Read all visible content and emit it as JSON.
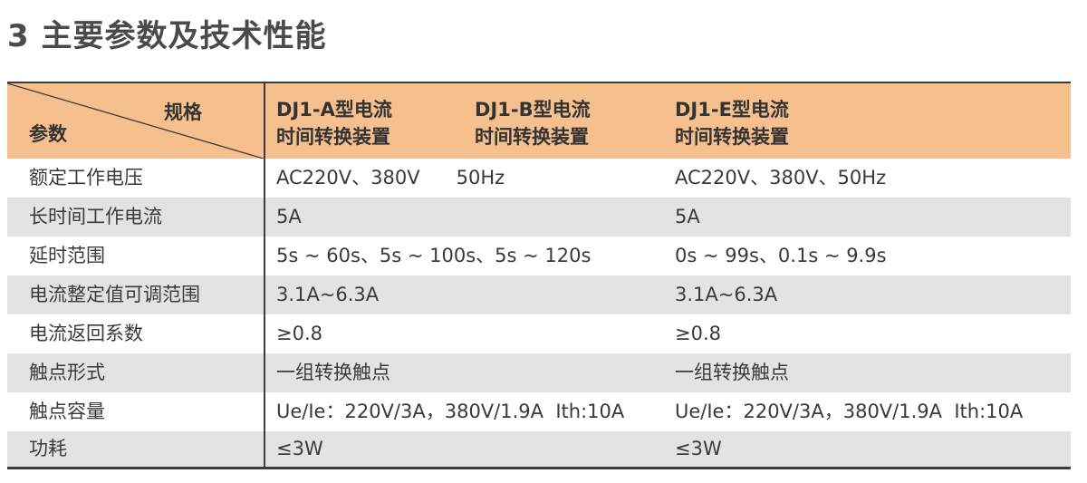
{
  "title": "3 主要参数及技术性能",
  "table": {
    "corner_top": "规格",
    "corner_bottom": "参数",
    "models": [
      {
        "line1": "DJ1-A型电流",
        "line2": "时间转换装置"
      },
      {
        "line1": "DJ1-B型电流",
        "line2": "时间转换装置"
      },
      {
        "line1": "DJ1-E型电流",
        "line2": "时间转换装置"
      }
    ],
    "rows": [
      {
        "label": "额定工作电压",
        "ab": "AC220V、380V      50Hz",
        "e": "AC220V、380V、50Hz"
      },
      {
        "label": "长时间工作电流",
        "ab": "5A",
        "e": "5A"
      },
      {
        "label": "延时范围",
        "ab": "5s ~ 60s、5s ~ 100s、5s ~ 120s",
        "e": "0s ~ 99s、0.1s ~ 9.9s"
      },
      {
        "label": "电流整定值可调范围",
        "ab": "3.1A~6.3A",
        "e": "3.1A~6.3A"
      },
      {
        "label": "电流返回系数",
        "ab": "≥0.8",
        "e": "≥0.8"
      },
      {
        "label": "触点形式",
        "ab": "一组转换触点",
        "e": "一组转换触点"
      },
      {
        "label": "触点容量",
        "ab": "Ue/Ie：220V/3A，380V/1.9A  Ith:10A",
        "e": "Ue/Ie：220V/3A，380V/1.9A  Ith:10A"
      },
      {
        "label": "功耗",
        "ab": "≤3W",
        "e": "≤3W"
      }
    ]
  },
  "colors": {
    "header_bg": "#f6c08e",
    "shaded_row": "#e3e3e3",
    "rule": "#3c3c3c"
  }
}
